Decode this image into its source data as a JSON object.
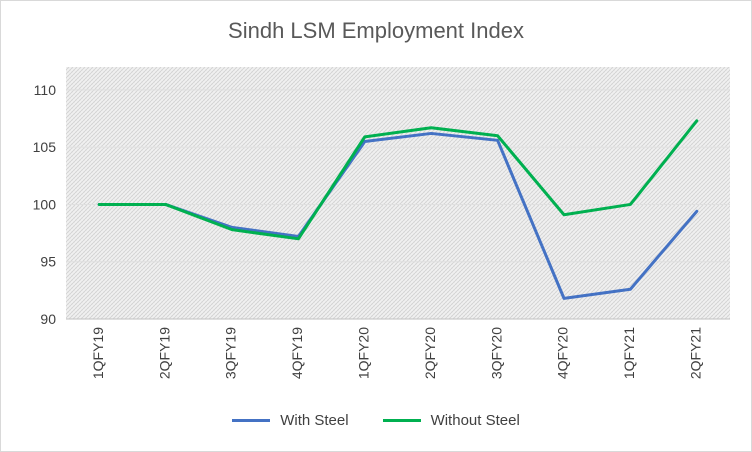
{
  "chart_data": {
    "type": "line",
    "title": "Sindh LSM Employment Index",
    "categories": [
      "1QFY19",
      "2QFY19",
      "3QFY19",
      "4QFY19",
      "1QFY20",
      "2QFY20",
      "3QFY20",
      "4QFY20",
      "1QFY21",
      "2QFY21"
    ],
    "series": [
      {
        "name": "With Steel",
        "color": "#4472c4",
        "values": [
          100,
          100,
          98,
          97.2,
          105.5,
          106.2,
          105.6,
          91.8,
          92.6,
          99.4
        ]
      },
      {
        "name": "Without Steel",
        "color": "#00b050",
        "values": [
          100,
          100,
          97.8,
          97.0,
          105.9,
          106.7,
          106.0,
          99.1,
          100.0,
          107.3
        ]
      }
    ],
    "yticks": [
      "90",
      "95",
      "100",
      "105",
      "110"
    ],
    "ylim": [
      90,
      112
    ],
    "grid": true,
    "legend_position": "bottom",
    "plot_background": "hatched-gray"
  }
}
